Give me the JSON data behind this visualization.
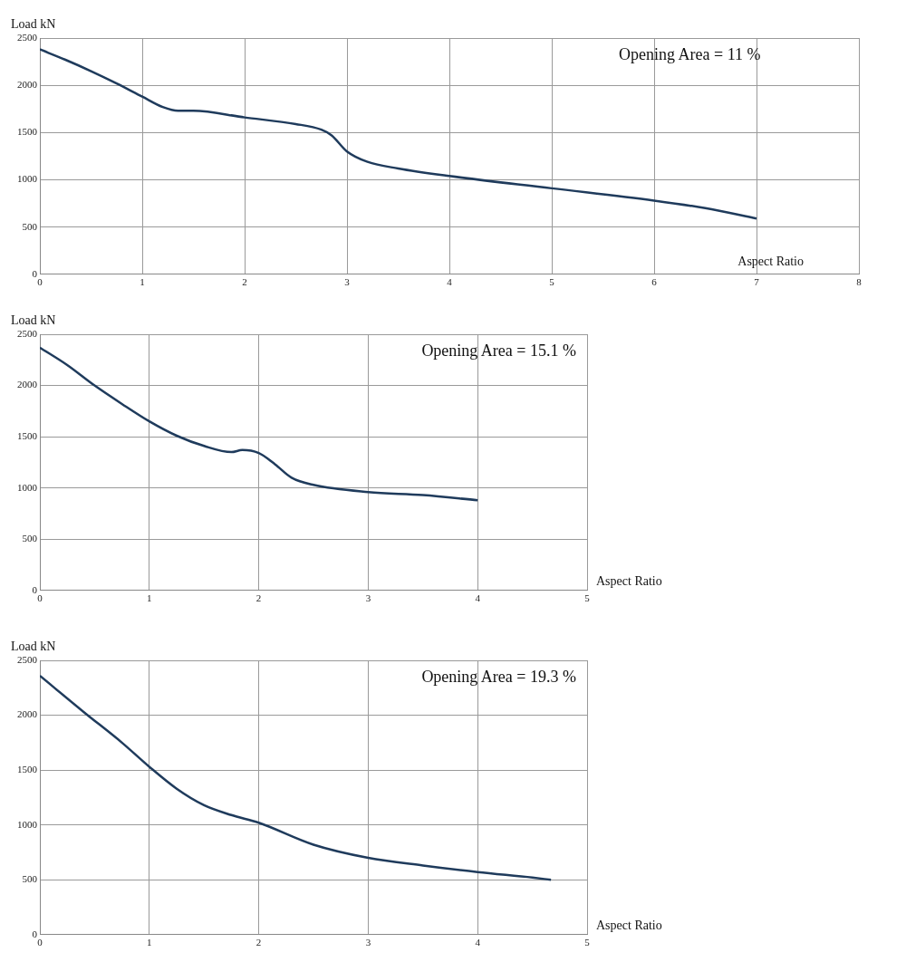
{
  "chart_data": [
    {
      "type": "line",
      "xlabel": "Aspect Ratio",
      "ylabel": "Load kN",
      "annotations": [
        "Opening Area = 11 %"
      ],
      "xlim": [
        0,
        8
      ],
      "xticks": [
        0,
        1,
        2,
        3,
        4,
        5,
        6,
        7,
        8
      ],
      "ylim": [
        0,
        2500
      ],
      "yticks": [
        0,
        500,
        1000,
        1500,
        2000,
        2500
      ],
      "grid": true,
      "marker": "none",
      "line_style": "solid",
      "series": [
        {
          "color": "#1f3b5c",
          "x": [
            0,
            0.25,
            0.5,
            0.75,
            1,
            1.2,
            1.35,
            1.5,
            2,
            2.5,
            2.75,
            2.85,
            3,
            3.2,
            3.5,
            4,
            5,
            6,
            6.5,
            7
          ],
          "values": [
            2380,
            2270,
            2150,
            2020,
            1880,
            1770,
            1730,
            1730,
            1660,
            1590,
            1530,
            1470,
            1300,
            1190,
            1120,
            1040,
            910,
            780,
            700,
            590
          ]
        }
      ]
    },
    {
      "type": "line",
      "xlabel": "Aspect Ratio",
      "ylabel": "Load kN",
      "annotations": [
        "Opening Area = 15.1 %"
      ],
      "xlim": [
        0,
        5
      ],
      "xticks": [
        0,
        1,
        2,
        3,
        4,
        5
      ],
      "ylim": [
        0,
        2500
      ],
      "yticks": [
        0,
        500,
        1000,
        1500,
        2000,
        2500
      ],
      "grid": true,
      "marker": "none",
      "line_style": "solid",
      "series": [
        {
          "color": "#1f3b5c",
          "x": [
            0,
            0.25,
            0.5,
            0.75,
            1,
            1.25,
            1.5,
            1.75,
            1.85,
            2,
            2.15,
            2.3,
            2.5,
            3,
            3.5,
            4
          ],
          "values": [
            2370,
            2200,
            2000,
            1820,
            1650,
            1510,
            1410,
            1350,
            1370,
            1340,
            1230,
            1100,
            1030,
            960,
            930,
            880
          ]
        }
      ]
    },
    {
      "type": "line",
      "xlabel": "Aspect Ratio",
      "ylabel": "Load kN",
      "annotations": [
        "Opening Area = 19.3 %"
      ],
      "xlim": [
        0,
        5
      ],
      "xticks": [
        0,
        1,
        2,
        3,
        4,
        5
      ],
      "ylim": [
        0,
        2500
      ],
      "yticks": [
        0,
        500,
        1000,
        1500,
        2000,
        2500
      ],
      "grid": true,
      "marker": "none",
      "line_style": "solid",
      "series": [
        {
          "color": "#1f3b5c",
          "x": [
            0,
            0.4,
            0.75,
            1,
            1.25,
            1.5,
            1.75,
            2,
            2.5,
            3,
            3.5,
            4,
            4.5,
            4.67
          ],
          "values": [
            2360,
            2030,
            1750,
            1530,
            1330,
            1180,
            1090,
            1020,
            820,
            700,
            630,
            570,
            520,
            500
          ]
        }
      ]
    }
  ]
}
